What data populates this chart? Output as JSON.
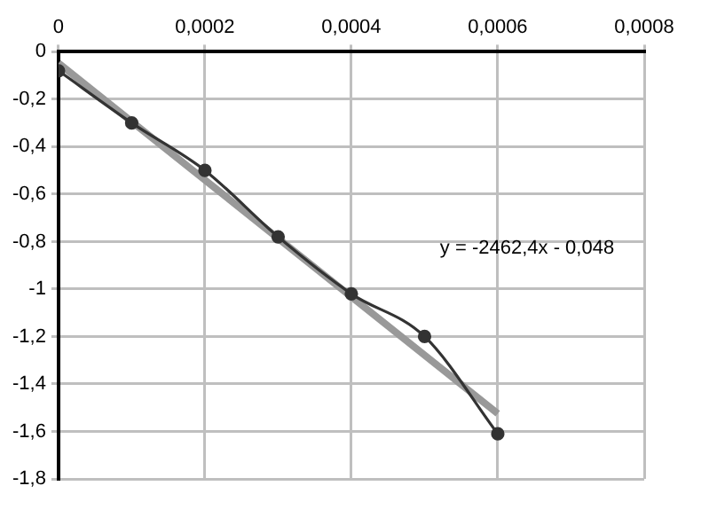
{
  "chart_data": {
    "type": "line",
    "xlim": [
      0,
      0.0008
    ],
    "xticks": [
      0,
      {
        "value": 0.0002,
        "label": "0,0002"
      },
      {
        "value": 0.0004,
        "label": "0,0004"
      },
      {
        "value": 0.0006,
        "label": "0,0006"
      },
      {
        "value": 0.0008,
        "label": "0,0008"
      }
    ],
    "ylim": [
      -1.8,
      0
    ],
    "yticks": [
      {
        "value": -1.8,
        "label": "-1,8"
      },
      {
        "value": -1.6,
        "label": "-1,6"
      },
      {
        "value": -1.4,
        "label": "-1,4"
      },
      {
        "value": -1.2,
        "label": "-1,2"
      },
      {
        "value": -1,
        "label": "-1"
      },
      {
        "value": -0.8,
        "label": "-0,8"
      },
      {
        "value": -0.6,
        "label": "-0,6"
      },
      {
        "value": -0.4,
        "label": "-0,4"
      },
      {
        "value": -0.2,
        "label": "-0,2"
      },
      0
    ],
    "grid": true,
    "legend": false,
    "line_style": "solid",
    "series": [
      {
        "color": "#333333",
        "marker": "circle",
        "x": [
          0,
          0.0001,
          0.0002,
          0.0003,
          0.0004,
          0.0005,
          0.0006
        ],
        "values": [
          -0.08,
          -0.3,
          -0.5,
          -0.78,
          -1.02,
          -1.2,
          -1.61
        ]
      },
      {
        "color": "#999999",
        "marker": "none",
        "x": [
          0,
          0.0006
        ],
        "values": [
          -0.048,
          -1.525
        ]
      }
    ],
    "annotations": [
      "y = -2462,4x - 0,048"
    ]
  }
}
